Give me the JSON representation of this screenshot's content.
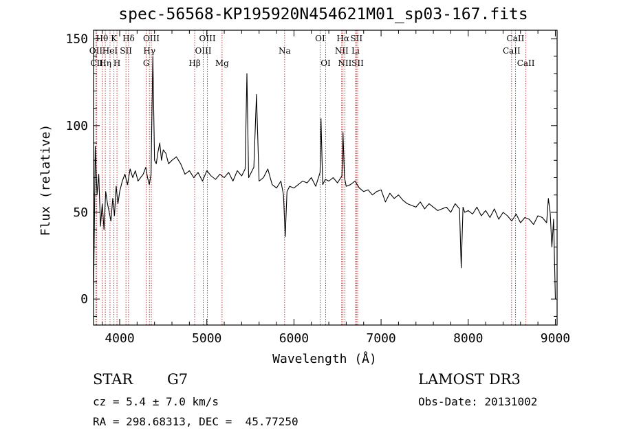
{
  "chart_data": {
    "type": "line",
    "title": "spec-56568-KP195920N454621M01_sp03-167.fits",
    "xlabel": "Wavelength (Å)",
    "ylabel": "Flux (relative)",
    "xlim": [
      3700,
      9020
    ],
    "ylim": [
      -15,
      155
    ],
    "xticks": [
      4000,
      5000,
      6000,
      7000,
      8000,
      9000
    ],
    "yticks": [
      0,
      50,
      100,
      150
    ],
    "series": [
      {
        "name": "spectrum",
        "x": [
          3700,
          3710,
          3720,
          3740,
          3760,
          3780,
          3800,
          3820,
          3840,
          3860,
          3880,
          3900,
          3920,
          3940,
          3960,
          3980,
          4000,
          4030,
          4060,
          4090,
          4120,
          4150,
          4180,
          4210,
          4240,
          4270,
          4300,
          4320,
          4340,
          4360,
          4380,
          4400,
          4420,
          4440,
          4460,
          4480,
          4500,
          4530,
          4560,
          4600,
          4650,
          4700,
          4750,
          4800,
          4850,
          4900,
          4950,
          5000,
          5050,
          5100,
          5150,
          5200,
          5250,
          5300,
          5350,
          5400,
          5440,
          5460,
          5480,
          5500,
          5540,
          5570,
          5600,
          5650,
          5700,
          5750,
          5800,
          5850,
          5880,
          5900,
          5920,
          5950,
          6000,
          6050,
          6100,
          6150,
          6200,
          6250,
          6300,
          6310,
          6330,
          6360,
          6400,
          6450,
          6500,
          6550,
          6563,
          6580,
          6600,
          6650,
          6700,
          6750,
          6800,
          6850,
          6900,
          6950,
          7000,
          7050,
          7100,
          7150,
          7200,
          7250,
          7300,
          7350,
          7400,
          7450,
          7500,
          7550,
          7600,
          7650,
          7700,
          7750,
          7800,
          7850,
          7900,
          7920,
          7940,
          7960,
          8000,
          8050,
          8100,
          8150,
          8200,
          8250,
          8300,
          8350,
          8400,
          8450,
          8500,
          8550,
          8600,
          8650,
          8700,
          8750,
          8800,
          8850,
          8900,
          8920,
          8940,
          8960,
          8980,
          9000
        ],
        "y": [
          2,
          45,
          88,
          60,
          72,
          42,
          55,
          40,
          62,
          55,
          50,
          45,
          58,
          48,
          65,
          55,
          62,
          68,
          72,
          66,
          75,
          70,
          74,
          68,
          70,
          72,
          76,
          70,
          66,
          72,
          140,
          80,
          78,
          85,
          90,
          80,
          86,
          84,
          78,
          80,
          82,
          78,
          72,
          74,
          70,
          73,
          68,
          74,
          71,
          69,
          72,
          70,
          73,
          68,
          74,
          71,
          75,
          130,
          70,
          72,
          76,
          118,
          68,
          70,
          75,
          66,
          64,
          68,
          60,
          36,
          62,
          65,
          64,
          66,
          68,
          67,
          70,
          65,
          73,
          104,
          66,
          69,
          68,
          70,
          67,
          71,
          96,
          70,
          65,
          66,
          68,
          64,
          62,
          63,
          60,
          62,
          63,
          56,
          61,
          58,
          60,
          57,
          55,
          54,
          53,
          56,
          52,
          55,
          53,
          51,
          52,
          53,
          50,
          55,
          52,
          18,
          53,
          50,
          51,
          49,
          53,
          48,
          51,
          47,
          52,
          46,
          50,
          48,
          45,
          49,
          44,
          47,
          46,
          43,
          48,
          47,
          44,
          58,
          50,
          30,
          46,
          0
        ]
      }
    ],
    "lines": [
      {
        "name": "Hθ",
        "wave": 3798,
        "row": 0
      },
      {
        "name": "OII",
        "wave": 3727,
        "row": 1
      },
      {
        "name": "CII",
        "wave": 3737,
        "row": 2
      },
      {
        "name": "HeI",
        "wave": 3889,
        "row": 1
      },
      {
        "name": "Hη",
        "wave": 3835,
        "row": 2
      },
      {
        "name": "K",
        "wave": 3934,
        "row": 0
      },
      {
        "name": "H",
        "wave": 3969,
        "row": 2
      },
      {
        "name": "Hδ",
        "wave": 4102,
        "row": 0
      },
      {
        "name": "SII",
        "wave": 4072,
        "row": 1
      },
      {
        "name": "OIII",
        "wave": 4363,
        "row": 0
      },
      {
        "name": "Hγ",
        "wave": 4341,
        "row": 1
      },
      {
        "name": "G",
        "wave": 4305,
        "row": 2
      },
      {
        "name": "Hβ",
        "wave": 4861,
        "row": 2
      },
      {
        "name": "OIII",
        "wave": 5007,
        "row": 0
      },
      {
        "name": "OIII",
        "wave": 4959,
        "row": 1
      },
      {
        "name": "Mg",
        "wave": 5175,
        "row": 2
      },
      {
        "name": "Na",
        "wave": 5893,
        "row": 1
      },
      {
        "name": "OI",
        "wave": 6300,
        "row": 0
      },
      {
        "name": "OI",
        "wave": 6364,
        "row": 2
      },
      {
        "name": "Hα",
        "wave": 6563,
        "row": 0
      },
      {
        "name": "NII",
        "wave": 6548,
        "row": 1
      },
      {
        "name": "NII",
        "wave": 6584,
        "row": 2
      },
      {
        "name": "SII",
        "wave": 6717,
        "row": 0
      },
      {
        "name": "Li",
        "wave": 6707,
        "row": 1
      },
      {
        "name": "SII",
        "wave": 6731,
        "row": 2
      },
      {
        "name": "CaII",
        "wave": 8542,
        "row": 0
      },
      {
        "name": "CaII",
        "wave": 8498,
        "row": 1
      },
      {
        "name": "CaII",
        "wave": 8662,
        "row": 2
      }
    ]
  },
  "info": {
    "class": "STAR",
    "subclass": "G7",
    "cz": "cz = 5.4 ± 7.0 km/s",
    "radec": "RA = 298.68313, DEC =  45.77250",
    "survey": "LAMOST DR3",
    "obsdate": "Obs-Date: 20131002"
  },
  "colors": {
    "line": "#000000",
    "marker": "#b22222"
  }
}
